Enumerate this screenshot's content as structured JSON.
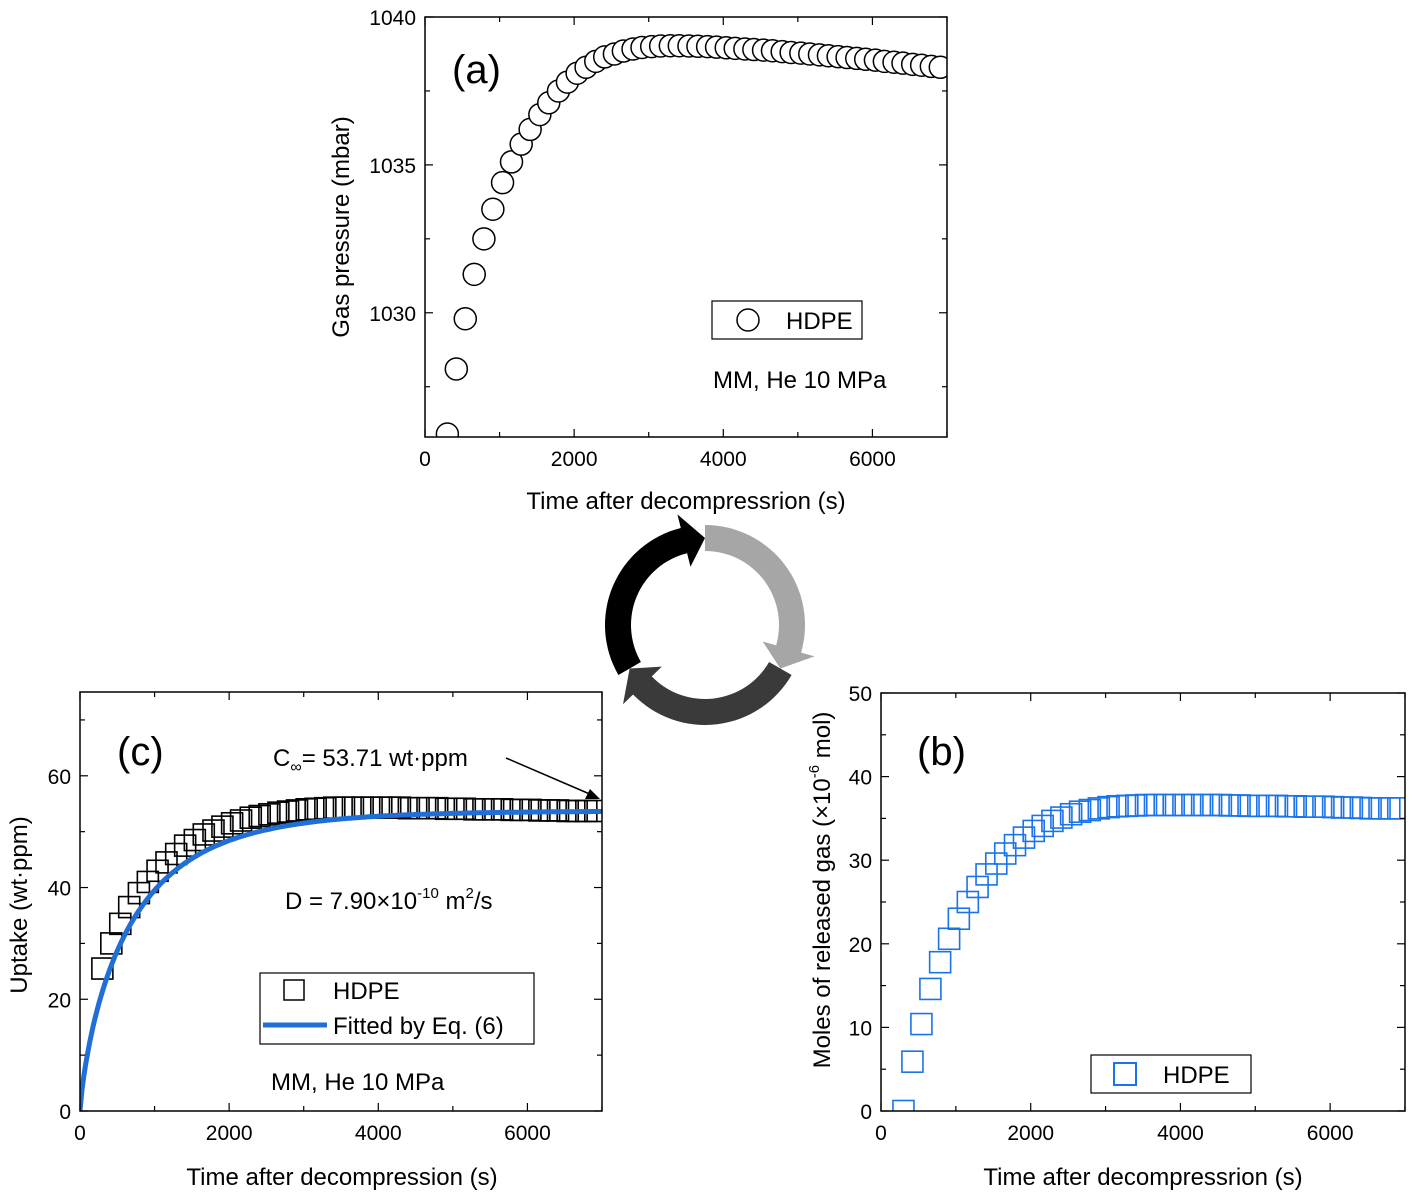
{
  "chart_data": [
    {
      "id": "a",
      "type": "scatter",
      "panel_label": "(a)",
      "xlabel": "Time after decompressrion (s)",
      "ylabel": "Gas pressure (mbar)",
      "xlim": [
        0,
        7000
      ],
      "ylim": [
        1025.8,
        1040
      ],
      "xticks": [
        0,
        2000,
        4000,
        6000
      ],
      "yticks": [
        1030,
        1035,
        1040
      ],
      "grid": false,
      "legend": {
        "placement": "center-right",
        "entries": [
          {
            "label": "HDPE",
            "marker": "circle",
            "color": "#000000"
          }
        ]
      },
      "annotations": [
        "MM, He 10 MPa"
      ],
      "series": [
        {
          "name": "HDPE",
          "marker": "circle",
          "color": "#000000",
          "x": [
            300,
            420,
            540,
            660,
            790,
            910,
            1040,
            1160,
            1290,
            1410,
            1540,
            1660,
            1790,
            1910,
            2040,
            2160,
            2290,
            2410,
            2540,
            2660,
            2790,
            2910,
            3040,
            3160,
            3290,
            3410,
            3540,
            3660,
            3790,
            3910,
            4040,
            4160,
            4290,
            4410,
            4540,
            4660,
            4790,
            4910,
            5040,
            5160,
            5290,
            5410,
            5540,
            5660,
            5790,
            5910,
            6040,
            6160,
            6290,
            6410,
            6540,
            6660,
            6790,
            6910
          ],
          "y": [
            1025.9,
            1028.1,
            1029.8,
            1031.3,
            1032.5,
            1033.5,
            1034.4,
            1035.1,
            1035.7,
            1036.2,
            1036.7,
            1037.1,
            1037.5,
            1037.8,
            1038.1,
            1038.3,
            1038.5,
            1038.65,
            1038.75,
            1038.85,
            1038.92,
            1038.97,
            1039.0,
            1039.02,
            1039.03,
            1039.03,
            1039.02,
            1039.01,
            1039.0,
            1038.98,
            1038.96,
            1038.94,
            1038.92,
            1038.9,
            1038.88,
            1038.86,
            1038.83,
            1038.8,
            1038.78,
            1038.75,
            1038.72,
            1038.69,
            1038.66,
            1038.63,
            1038.6,
            1038.57,
            1038.54,
            1038.5,
            1038.47,
            1038.44,
            1038.4,
            1038.37,
            1038.33,
            1038.3
          ]
        }
      ]
    },
    {
      "id": "b",
      "type": "scatter",
      "panel_label": "(b)",
      "xlabel": "Time after decompressrion (s)",
      "ylabel": "Moles of released gas (×10",
      "ylabel_exp": "-6",
      "ylabel_end": " mol)",
      "xlim": [
        0,
        7000
      ],
      "ylim": [
        0,
        50
      ],
      "xticks": [
        0,
        2000,
        4000,
        6000
      ],
      "yticks": [
        0,
        10,
        20,
        30,
        40,
        50
      ],
      "grid": false,
      "legend": {
        "placement": "bottom-right",
        "entries": [
          {
            "label": "HDPE",
            "marker": "square",
            "color": "#1a73e8"
          }
        ]
      },
      "series": [
        {
          "name": "HDPE",
          "marker": "square",
          "color": "#1a73e8",
          "x": [
            300,
            420,
            540,
            660,
            790,
            910,
            1040,
            1160,
            1290,
            1410,
            1540,
            1660,
            1790,
            1910,
            2040,
            2160,
            2290,
            2410,
            2540,
            2660,
            2790,
            2910,
            3040,
            3160,
            3290,
            3410,
            3540,
            3660,
            3790,
            3910,
            4040,
            4160,
            4290,
            4410,
            4540,
            4660,
            4790,
            4910,
            5040,
            5160,
            5290,
            5410,
            5540,
            5660,
            5790,
            5910,
            6040,
            6160,
            6290,
            6410,
            6540,
            6660,
            6790,
            6910
          ],
          "y": [
            0.0,
            5.9,
            10.4,
            14.6,
            17.8,
            20.6,
            23.0,
            25.0,
            26.8,
            28.3,
            29.6,
            30.8,
            31.8,
            32.7,
            33.5,
            34.1,
            34.7,
            35.1,
            35.5,
            35.8,
            36.0,
            36.2,
            36.35,
            36.45,
            36.5,
            36.55,
            36.6,
            36.6,
            36.6,
            36.6,
            36.6,
            36.6,
            36.6,
            36.6,
            36.6,
            36.55,
            36.55,
            36.5,
            36.5,
            36.5,
            36.5,
            36.45,
            36.45,
            36.4,
            36.4,
            36.4,
            36.35,
            36.3,
            36.3,
            36.25,
            36.2,
            36.2,
            36.2,
            36.2
          ]
        }
      ]
    },
    {
      "id": "c",
      "type": "scatter",
      "panel_label": "(c)",
      "xlabel": "Time after decompression (s)",
      "ylabel": "Uptake (wt·ppm)",
      "xlim": [
        0,
        7000
      ],
      "ylim": [
        0,
        75
      ],
      "xticks": [
        0,
        2000,
        4000,
        6000
      ],
      "yticks": [
        0,
        20,
        40,
        60
      ],
      "grid": false,
      "legend": {
        "placement": "bottom-center",
        "entries": [
          {
            "label": "HDPE",
            "marker": "square",
            "color": "#000000"
          },
          {
            "label": "Fitted by Eq. (6)",
            "marker": "line",
            "color": "#1f6fd6"
          }
        ]
      },
      "annotations": [
        "MM, He 10 MPa"
      ],
      "cinf_text": "C",
      "cinf_sub": "∞",
      "cinf_value": "= 53.71 wt·ppm",
      "d_text": "D = 7.90×10",
      "d_exp": "-10",
      "d_unit": " m",
      "d_unit_exp": "2",
      "d_unit_end": "/s",
      "fit_params": {
        "c_inf": 53.71,
        "tau": 700
      },
      "series": [
        {
          "name": "HDPE",
          "marker": "square",
          "color": "#000000",
          "x": [
            300,
            420,
            540,
            660,
            790,
            910,
            1040,
            1160,
            1290,
            1410,
            1540,
            1660,
            1790,
            1910,
            2040,
            2160,
            2290,
            2410,
            2540,
            2660,
            2790,
            2910,
            3040,
            3160,
            3290,
            3410,
            3540,
            3660,
            3790,
            3910,
            4040,
            4160,
            4290,
            4410,
            4540,
            4660,
            4790,
            4910,
            5040,
            5160,
            5290,
            5410,
            5540,
            5660,
            5790,
            5910,
            6040,
            6160,
            6290,
            6410,
            6540,
            6660,
            6790,
            6910
          ],
          "y": [
            25.5,
            30.0,
            33.5,
            36.5,
            39.0,
            41.0,
            43.0,
            44.5,
            46.0,
            47.5,
            48.5,
            49.5,
            50.2,
            50.9,
            51.5,
            52.0,
            52.5,
            52.8,
            53.1,
            53.4,
            53.6,
            53.8,
            54.0,
            54.1,
            54.2,
            54.3,
            54.3,
            54.3,
            54.3,
            54.3,
            54.3,
            54.3,
            54.3,
            54.2,
            54.2,
            54.2,
            54.2,
            54.1,
            54.1,
            54.1,
            54.0,
            54.0,
            54.0,
            54.0,
            53.9,
            53.9,
            53.9,
            53.8,
            53.8,
            53.8,
            53.7,
            53.7,
            53.7,
            53.7
          ]
        }
      ]
    }
  ],
  "cycle_colors": [
    "#000000",
    "#a6a6a6",
    "#3a3a3a"
  ]
}
